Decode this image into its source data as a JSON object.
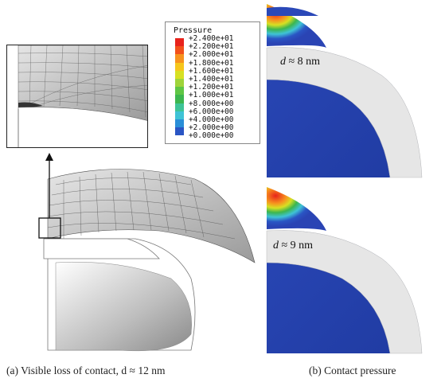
{
  "legend": {
    "title": "Pressure",
    "entries": [
      {
        "label": "+2.400e+01",
        "color": "#e8231c"
      },
      {
        "label": "+2.200e+01",
        "color": "#f2511b"
      },
      {
        "label": "+2.000e+01",
        "color": "#f7931e"
      },
      {
        "label": "+1.800e+01",
        "color": "#f6c61c"
      },
      {
        "label": "+1.600e+01",
        "color": "#d7e023"
      },
      {
        "label": "+1.400e+01",
        "color": "#9fd43a"
      },
      {
        "label": "+1.200e+01",
        "color": "#5fc645"
      },
      {
        "label": "+1.000e+01",
        "color": "#3cb64f"
      },
      {
        "label": "+8.000e+00",
        "color": "#3ec497"
      },
      {
        "label": "+6.000e+00",
        "color": "#3fc3d6"
      },
      {
        "label": "+4.000e+00",
        "color": "#2a8fd8"
      },
      {
        "label": "+2.000e+00",
        "color": "#2a55c4"
      },
      {
        "label": "+0.000e+00",
        "color": "#2a3a9e"
      }
    ]
  },
  "contact_top": {
    "label_symbol": "d",
    "label_text": "≈ 8 nm"
  },
  "contact_bottom": {
    "label_symbol": "d",
    "label_text": "≈ 9 nm"
  },
  "captions": {
    "left": "(a) Visible loss of contact, d ≈ 12 nm",
    "right": "(b) Contact pressure"
  }
}
